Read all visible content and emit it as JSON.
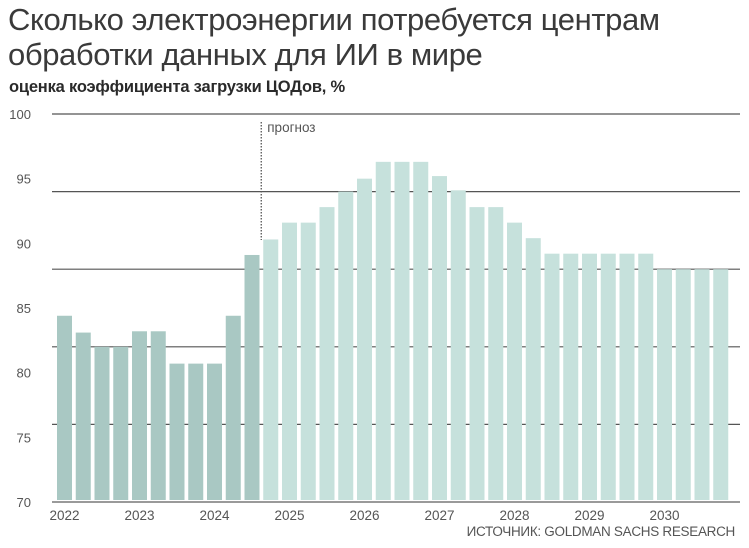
{
  "title": "Сколько электроэнергии потребуется центрам обработки данных для ИИ в мире",
  "subtitle": "оценка коэффициента загрузки ЦОДов, %",
  "source": "ИСТОЧНИК: GOLDMAN SACHS RESEARCH",
  "colors": {
    "historical": "#a9c8c3",
    "forecast": "#c6e1dc",
    "grid": "#555555",
    "text": "#555555"
  },
  "chart_data": {
    "type": "bar",
    "title": "Сколько электроэнергии потребуется центрам обработки данных для ИИ в мире",
    "subtitle": "оценка коэффициента загрузки ЦОДов, %",
    "ylim": [
      70,
      100
    ],
    "yticks": [
      70,
      75,
      80,
      85,
      90,
      95,
      100
    ],
    "gridlines": [
      70,
      76,
      82,
      88,
      94,
      100
    ],
    "grid": true,
    "xticks": [
      "2022",
      "2023",
      "2024",
      "2025",
      "2026",
      "2027",
      "2028",
      "2029",
      "2030"
    ],
    "categories": [
      "2022 Q1",
      "2022 Q2",
      "2022 Q3",
      "2022 Q4",
      "2023 Q1",
      "2023 Q2",
      "2023 Q3",
      "2023 Q4",
      "2024 Q1",
      "2024 Q2",
      "2024 Q3",
      "2024 Q4",
      "2025 Q1",
      "2025 Q2",
      "2025 Q3",
      "2025 Q4",
      "2026 Q1",
      "2026 Q2",
      "2026 Q3",
      "2026 Q4",
      "2027 Q1",
      "2027 Q2",
      "2027 Q3",
      "2027 Q4",
      "2028 Q1",
      "2028 Q2",
      "2028 Q3",
      "2028 Q4",
      "2029 Q1",
      "2029 Q2",
      "2029 Q3",
      "2029 Q4",
      "2030 Q1",
      "2030 Q2",
      "2030 Q3",
      "2030 Q4"
    ],
    "values": [
      84.4,
      83.1,
      82.0,
      82.0,
      83.2,
      83.2,
      80.7,
      80.7,
      80.7,
      84.4,
      89.1,
      90.3,
      91.6,
      91.6,
      92.8,
      94.0,
      95.0,
      96.3,
      96.3,
      96.3,
      95.2,
      94.1,
      92.8,
      92.8,
      91.6,
      90.4,
      89.2,
      89.2,
      89.2,
      89.2,
      89.2,
      89.2,
      88.0,
      88.0,
      88.0,
      88.0
    ],
    "historical_count": 11,
    "forecast_label": "прогноз"
  }
}
